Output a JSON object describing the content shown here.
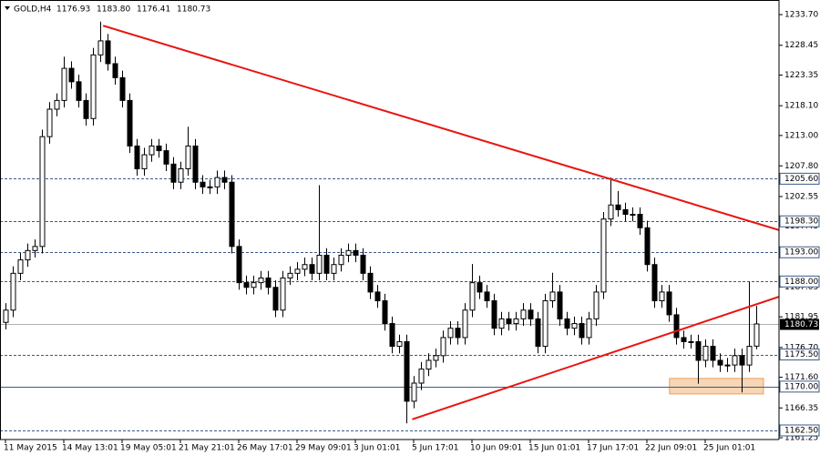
{
  "chart_data": {
    "type": "candlestick",
    "symbol": "GOLD,H4",
    "quote_labels": [
      "1176.93",
      "1183.80",
      "1176.41",
      "1180.73"
    ],
    "categories": [
      "11 May 2015",
      null,
      null,
      null,
      null,
      null,
      null,
      null,
      "14 May 13:01",
      null,
      null,
      null,
      null,
      null,
      null,
      null,
      "19 May 05:01",
      null,
      null,
      null,
      null,
      null,
      null,
      null,
      "21 May 21:01",
      null,
      null,
      null,
      null,
      null,
      null,
      null,
      "26 May 17:01",
      null,
      null,
      null,
      null,
      null,
      null,
      null,
      "29 May 09:01",
      null,
      null,
      null,
      null,
      null,
      null,
      null,
      "3 Jun 01:01",
      null,
      null,
      null,
      null,
      null,
      null,
      null,
      "5 Jun 17:01",
      null,
      null,
      null,
      null,
      null,
      null,
      null,
      "10 Jun 09:01",
      null,
      null,
      null,
      null,
      null,
      null,
      null,
      "15 Jun 01:01",
      null,
      null,
      null,
      null,
      null,
      null,
      null,
      "17 Jun 17:01",
      null,
      null,
      null,
      null,
      null,
      null,
      null,
      "22 Jun 09:01",
      null,
      null,
      null,
      null,
      null,
      null,
      null,
      "25 Jun 01:01",
      null,
      null,
      null,
      null,
      null,
      null,
      null
    ],
    "open": [
      1181.0,
      1183.1,
      1189.4,
      1191.7,
      1193.3,
      1194.0,
      1212.8,
      1217.5,
      1219.0,
      1224.5,
      1222.2,
      1219.0,
      1215.9,
      1226.8,
      1229.2,
      1225.3,
      1222.9,
      1219.0,
      1211.2,
      1207.3,
      1209.7,
      1211.2,
      1210.4,
      1208.1,
      1205.0,
      1207.3,
      1211.2,
      1205.0,
      1204.2,
      1204.2,
      1205.8,
      1205.0,
      1194.0,
      1187.8,
      1187.0,
      1187.8,
      1188.6,
      1187.0,
      1183.1,
      1188.6,
      1189.4,
      1190.1,
      1190.9,
      1189.4,
      1192.5,
      1189.4,
      1190.9,
      1192.5,
      1193.3,
      1192.5,
      1189.4,
      1186.2,
      1184.7,
      1180.8,
      1176.9,
      1177.7,
      1167.5,
      1170.6,
      1173.0,
      1174.5,
      1175.3,
      1178.4,
      1180.0,
      1178.4,
      1183.1,
      1187.8,
      1186.2,
      1184.7,
      1180.0,
      1181.6,
      1180.8,
      1181.6,
      1183.1,
      1181.6,
      1176.9,
      1184.7,
      1186.2,
      1181.6,
      1180.0,
      1180.8,
      1178.4,
      1181.6,
      1186.2,
      1198.7,
      1201.1,
      1200.3,
      1199.5,
      1199.5,
      1197.2,
      1190.9,
      1184.7,
      1186.2,
      1182.3,
      1178.4,
      1177.7,
      1177.7,
      1174.5,
      1176.9,
      1174.5,
      1173.7,
      1173.7,
      1175.3,
      1173.7,
      1176.93
    ],
    "high": [
      1184.3,
      1190.6,
      1192.9,
      1194.5,
      1195.2,
      1214.0,
      1218.7,
      1220.2,
      1226.5,
      1225.7,
      1223.4,
      1220.2,
      1228.0,
      1232.5,
      1230.4,
      1226.5,
      1224.1,
      1220.2,
      1212.4,
      1210.9,
      1212.4,
      1212.4,
      1211.6,
      1209.3,
      1208.5,
      1214.5,
      1212.4,
      1206.2,
      1205.4,
      1207.0,
      1207.0,
      1206.2,
      1195.2,
      1189.0,
      1189.0,
      1189.8,
      1189.8,
      1188.2,
      1189.8,
      1190.6,
      1191.3,
      1192.1,
      1192.1,
      1204.5,
      1193.7,
      1192.1,
      1193.7,
      1194.5,
      1194.5,
      1193.7,
      1190.6,
      1187.4,
      1185.9,
      1182.0,
      1178.9,
      1178.9,
      1171.8,
      1174.2,
      1175.7,
      1176.5,
      1179.6,
      1181.2,
      1181.2,
      1184.3,
      1191.0,
      1189.0,
      1187.4,
      1185.9,
      1182.8,
      1182.8,
      1182.8,
      1184.3,
      1184.3,
      1182.8,
      1185.9,
      1189.5,
      1187.4,
      1182.8,
      1182.0,
      1182.0,
      1182.8,
      1187.4,
      1199.9,
      1205.8,
      1203.5,
      1201.5,
      1200.7,
      1200.7,
      1198.4,
      1192.1,
      1187.4,
      1187.4,
      1183.5,
      1179.6,
      1178.9,
      1178.9,
      1178.1,
      1178.1,
      1175.7,
      1174.9,
      1176.5,
      1176.5,
      1188.0,
      1183.8
    ],
    "low": [
      1179.8,
      1181.9,
      1188.2,
      1190.5,
      1192.1,
      1192.8,
      1211.6,
      1216.3,
      1217.8,
      1221.0,
      1217.8,
      1214.7,
      1214.7,
      1225.6,
      1224.1,
      1221.7,
      1217.8,
      1210.0,
      1206.1,
      1206.1,
      1208.5,
      1209.2,
      1206.9,
      1203.8,
      1203.8,
      1206.1,
      1203.8,
      1203.0,
      1203.0,
      1203.0,
      1203.8,
      1192.8,
      1186.6,
      1185.8,
      1185.8,
      1186.6,
      1185.8,
      1181.9,
      1181.9,
      1187.4,
      1188.2,
      1188.9,
      1188.2,
      1188.2,
      1188.2,
      1188.2,
      1189.7,
      1191.3,
      1191.3,
      1188.2,
      1185.0,
      1183.5,
      1179.6,
      1175.7,
      1175.7,
      1163.7,
      1166.3,
      1169.4,
      1171.8,
      1173.3,
      1174.1,
      1177.2,
      1177.2,
      1177.2,
      1181.9,
      1185.0,
      1183.5,
      1178.8,
      1178.8,
      1179.6,
      1179.6,
      1180.4,
      1180.4,
      1175.7,
      1175.7,
      1183.5,
      1180.4,
      1178.8,
      1178.8,
      1177.2,
      1177.2,
      1180.4,
      1185.0,
      1197.5,
      1199.1,
      1198.3,
      1198.3,
      1196.0,
      1189.7,
      1183.5,
      1183.5,
      1181.1,
      1177.2,
      1176.5,
      1176.5,
      1170.5,
      1173.3,
      1173.3,
      1172.5,
      1172.5,
      1172.5,
      1169.0,
      1172.5,
      1176.41
    ],
    "close": [
      1183.1,
      1189.4,
      1191.7,
      1193.3,
      1194.0,
      1212.8,
      1217.5,
      1219.0,
      1224.5,
      1222.2,
      1219.0,
      1215.9,
      1226.8,
      1229.2,
      1225.3,
      1222.9,
      1219.0,
      1211.2,
      1207.3,
      1209.7,
      1211.2,
      1210.4,
      1208.1,
      1205.0,
      1207.3,
      1211.2,
      1205.0,
      1204.2,
      1204.2,
      1205.8,
      1205.0,
      1194.0,
      1187.8,
      1187.0,
      1187.8,
      1188.6,
      1187.0,
      1183.1,
      1188.6,
      1189.4,
      1190.1,
      1190.9,
      1189.4,
      1192.5,
      1189.4,
      1190.9,
      1192.5,
      1193.3,
      1192.5,
      1189.4,
      1186.2,
      1184.7,
      1180.8,
      1176.9,
      1177.7,
      1167.5,
      1170.6,
      1173.0,
      1174.5,
      1175.3,
      1178.4,
      1180.0,
      1178.4,
      1183.1,
      1187.8,
      1186.2,
      1184.7,
      1180.0,
      1181.6,
      1180.8,
      1181.6,
      1183.1,
      1181.6,
      1176.9,
      1184.7,
      1186.2,
      1181.6,
      1180.0,
      1180.8,
      1178.4,
      1181.6,
      1186.2,
      1198.7,
      1201.1,
      1200.3,
      1199.5,
      1199.5,
      1197.2,
      1190.9,
      1184.7,
      1186.2,
      1182.3,
      1178.4,
      1177.7,
      1177.7,
      1174.5,
      1176.9,
      1174.5,
      1173.7,
      1173.7,
      1175.3,
      1173.7,
      1176.9,
      1180.73
    ],
    "ylim": [
      1160.94,
      1236.2
    ],
    "yticks": [
      {
        "value": 1233.7,
        "label": "1233.70"
      },
      {
        "value": 1228.45,
        "label": "1228.45"
      },
      {
        "value": 1223.35,
        "label": "1223.35"
      },
      {
        "value": 1218.1,
        "label": "1218.10"
      },
      {
        "value": 1213.0,
        "label": "1213.00"
      },
      {
        "value": 1207.8,
        "label": "1207.80"
      },
      {
        "value": 1202.55,
        "label": "1202.55"
      },
      {
        "value": 1197.45,
        "label": "1197.45"
      },
      {
        "value": 1187.05,
        "label": "1187.05"
      },
      {
        "value": 1181.95,
        "label": "1181.95"
      },
      {
        "value": 1176.7,
        "label": "1176.70"
      },
      {
        "value": 1171.6,
        "label": "1171.60"
      },
      {
        "value": 1166.35,
        "label": "1166.35"
      },
      {
        "value": 1161.25,
        "label": "1161.25"
      }
    ],
    "levels": [
      {
        "value": 1205.6,
        "label": "1205.60"
      },
      {
        "value": 1198.3,
        "label": "1198.30"
      },
      {
        "value": 1193.0,
        "label": "1193.00"
      },
      {
        "value": 1188.0,
        "label": "1188.00"
      },
      {
        "value": 1175.5,
        "label": "1175.50"
      },
      {
        "value": 1170.0,
        "label": "1170.00"
      },
      {
        "value": 1162.5,
        "label": "1162.50"
      }
    ],
    "current": {
      "value": 1180.73,
      "label": "1180.73"
    },
    "trendlines": [
      {
        "x": [
          13.4,
          106.4
        ],
        "y": [
          1231.8,
          1196.7
        ]
      },
      {
        "x": [
          55.8,
          106.4
        ],
        "y": [
          1164.4,
          1185.5
        ]
      }
    ],
    "zone": {
      "x": [
        91.1,
        104.0
      ],
      "y": [
        1168.75,
        1171.4
      ]
    },
    "bull_color": "#ffffff",
    "bear_color": "#000000",
    "trendline_color": "#e8150f",
    "level_color": "#3b5a86",
    "zone_color": "#f8d5b4"
  }
}
